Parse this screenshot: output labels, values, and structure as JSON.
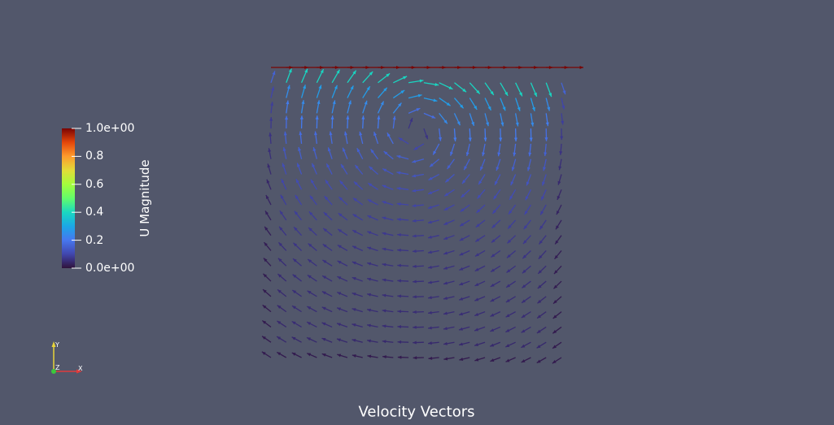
{
  "view": {
    "title": "Velocity Vectors"
  },
  "legend": {
    "title": "U Magnitude",
    "ticks": [
      {
        "value": 1.0,
        "label": "1.0e+00"
      },
      {
        "value": 0.8,
        "label": "0.8"
      },
      {
        "value": 0.6,
        "label": "0.6"
      },
      {
        "value": 0.4,
        "label": "0.4"
      },
      {
        "value": 0.2,
        "label": "0.2"
      },
      {
        "value": 0.0,
        "label": "0.0e+00"
      }
    ],
    "range": [
      0,
      1
    ],
    "colormap": "turbo",
    "placement": "left"
  },
  "axes_triad": {
    "x": "X",
    "y": "Y",
    "z": "Z",
    "x_color": "#e03c3c",
    "y_color": "#e8d43a",
    "z_color": "#3cc83c"
  },
  "colors": {
    "background": "#52576b",
    "text": "#ffffff"
  },
  "chart_data": {
    "type": "vector-field",
    "title": "Velocity Vectors",
    "color_by": "U Magnitude",
    "value_range": [
      0,
      1
    ],
    "grid": false,
    "description_of_field": "lid-driven cavity: lid moves +x at top with magnitude 1.0; single primary vortex in the upper-center region"
  }
}
